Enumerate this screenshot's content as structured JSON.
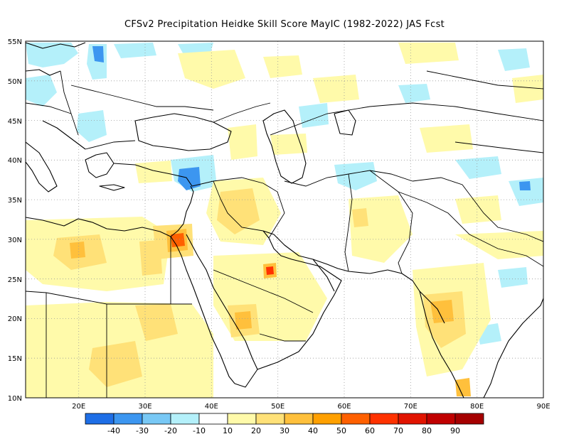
{
  "title": "CFSv2  Precipitation Heidke Skill Score MayIC (1982-2022) JAS Fcst",
  "map": {
    "lon_range": [
      12,
      90
    ],
    "lat_range": [
      10,
      55
    ],
    "lat_ticks": [
      "55N",
      "50N",
      "45N",
      "40N",
      "35N",
      "30N",
      "25N",
      "20N",
      "15N",
      "10N"
    ],
    "lon_ticks": [
      "20E",
      "30E",
      "40E",
      "50E",
      "60E",
      "70E",
      "80E",
      "90E"
    ],
    "grid": true,
    "grid_style": "dotted"
  },
  "colorbar": {
    "labels": [
      "-40",
      "-30",
      "-20",
      "-10",
      "10",
      "20",
      "30",
      "40",
      "50",
      "60",
      "70",
      "80",
      "90"
    ],
    "colors": [
      "#1e6ee6",
      "#3c96f0",
      "#78c8f5",
      "#b4f0fa",
      "#ffffff",
      "#fffaaa",
      "#ffe178",
      "#ffc03c",
      "#ffa000",
      "#ff6000",
      "#ff3200",
      "#e11400",
      "#c00000",
      "#a50000"
    ]
  },
  "colors": {
    "neg_strong": "#3c96f0",
    "neg_light": "#b4f0fa",
    "pos_light": "#fffaaa",
    "pos_mid": "#ffe178",
    "pos_orange": "#ffc03c",
    "pos_dark": "#ffa000",
    "pos_red": "#ff3200",
    "coast": "#000000"
  }
}
